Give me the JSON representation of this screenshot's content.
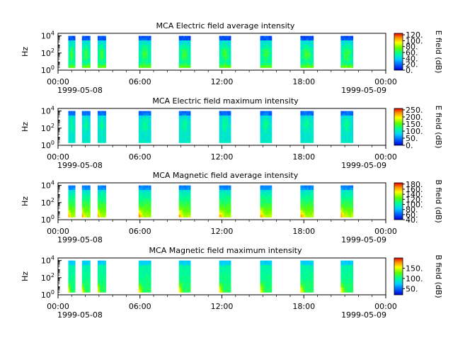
{
  "chart_data": [
    {
      "type": "heatmap",
      "title": "MCA  Electric field average intensity",
      "ylabel": "Hz",
      "colorbar_label": "E field (dB)",
      "colorbar_ticks": [
        "0.",
        "20.",
        "40.",
        "60.",
        "80.",
        "100.",
        "120."
      ],
      "colorbar_range": [
        0,
        125
      ],
      "yscale": "log",
      "ylim_exp": [
        0,
        4.3
      ],
      "ytick_exponents": [
        0,
        2,
        4
      ],
      "xtick_labels": [
        "00:00",
        "06:00",
        "12:00",
        "18:00",
        "00:00"
      ],
      "xtick_hours": [
        0,
        6,
        12,
        18,
        24
      ],
      "date_start": "1999-05-08",
      "date_end": "1999-05-09",
      "data_intervals_hours": [
        [
          0.75,
          1.25
        ],
        [
          1.75,
          2.35
        ],
        [
          2.9,
          3.5
        ],
        [
          5.9,
          6.8
        ],
        [
          8.85,
          9.7
        ],
        [
          11.8,
          12.65
        ],
        [
          14.8,
          15.65
        ],
        [
          17.75,
          18.7
        ],
        [
          20.7,
          21.6
        ]
      ],
      "freq_range_exp": [
        0.3,
        4.0
      ],
      "intensity_profile": "average-e"
    },
    {
      "type": "heatmap",
      "title": "MCA  Electric field maximum intensity",
      "ylabel": "Hz",
      "colorbar_label": "E field (dB)",
      "colorbar_ticks": [
        "0.",
        "50.",
        "100.",
        "150.",
        "200.",
        "250."
      ],
      "colorbar_range": [
        0,
        260
      ],
      "yscale": "log",
      "ylim_exp": [
        0,
        4.3
      ],
      "ytick_exponents": [
        0,
        2,
        4
      ],
      "xtick_labels": [
        "00:00",
        "06:00",
        "12:00",
        "18:00",
        "00:00"
      ],
      "xtick_hours": [
        0,
        6,
        12,
        18,
        24
      ],
      "date_start": "1999-05-08",
      "date_end": "1999-05-09",
      "data_intervals_hours": [
        [
          0.75,
          1.25
        ],
        [
          1.75,
          2.35
        ],
        [
          2.9,
          3.5
        ],
        [
          5.9,
          6.8
        ],
        [
          8.85,
          9.7
        ],
        [
          11.8,
          12.65
        ],
        [
          14.8,
          15.65
        ],
        [
          17.75,
          18.7
        ],
        [
          20.7,
          21.6
        ]
      ],
      "freq_range_exp": [
        0.3,
        4.0
      ],
      "intensity_profile": "max-e"
    },
    {
      "type": "heatmap",
      "title": "MCA  Magnetic field average intensity",
      "ylabel": "Hz",
      "colorbar_label": "B field (dB)",
      "colorbar_ticks": [
        "40.",
        "60.",
        "80.",
        "100.",
        "120.",
        "140.",
        "160.",
        "180."
      ],
      "colorbar_range": [
        40,
        185
      ],
      "yscale": "log",
      "ylim_exp": [
        0,
        4.3
      ],
      "ytick_exponents": [
        0,
        2,
        4
      ],
      "xtick_labels": [
        "00:00",
        "06:00",
        "12:00",
        "18:00",
        "00:00"
      ],
      "xtick_hours": [
        0,
        6,
        12,
        18,
        24
      ],
      "date_start": "1999-05-08",
      "date_end": "1999-05-09",
      "data_intervals_hours": [
        [
          0.75,
          1.25
        ],
        [
          1.75,
          2.35
        ],
        [
          2.9,
          3.5
        ],
        [
          5.9,
          6.8
        ],
        [
          8.85,
          9.7
        ],
        [
          11.8,
          12.65
        ],
        [
          14.8,
          15.65
        ],
        [
          17.75,
          18.7
        ],
        [
          20.7,
          21.6
        ]
      ],
      "freq_range_exp": [
        0.3,
        4.0
      ],
      "intensity_profile": "average-b"
    },
    {
      "type": "heatmap",
      "title": "MCA  Magnetic field maximum intensity",
      "ylabel": "Hz",
      "colorbar_label": "B field (dB)",
      "colorbar_ticks": [
        "50.",
        "100.",
        "150."
      ],
      "colorbar_range": [
        20,
        200
      ],
      "yscale": "log",
      "ylim_exp": [
        0,
        4.3
      ],
      "ytick_exponents": [
        0,
        2,
        4
      ],
      "xtick_labels": [
        "00:00",
        "06:00",
        "12:00",
        "18:00",
        "00:00"
      ],
      "xtick_hours": [
        0,
        6,
        12,
        18,
        24
      ],
      "date_start": "1999-05-08",
      "date_end": "1999-05-09",
      "data_intervals_hours": [
        [
          0.75,
          1.25
        ],
        [
          1.75,
          2.35
        ],
        [
          2.9,
          3.5
        ],
        [
          5.9,
          6.8
        ],
        [
          8.85,
          9.7
        ],
        [
          11.8,
          12.65
        ],
        [
          14.8,
          15.65
        ],
        [
          17.75,
          18.7
        ],
        [
          20.7,
          21.6
        ]
      ],
      "freq_range_exp": [
        0.3,
        4.0
      ],
      "intensity_profile": "max-b"
    }
  ]
}
